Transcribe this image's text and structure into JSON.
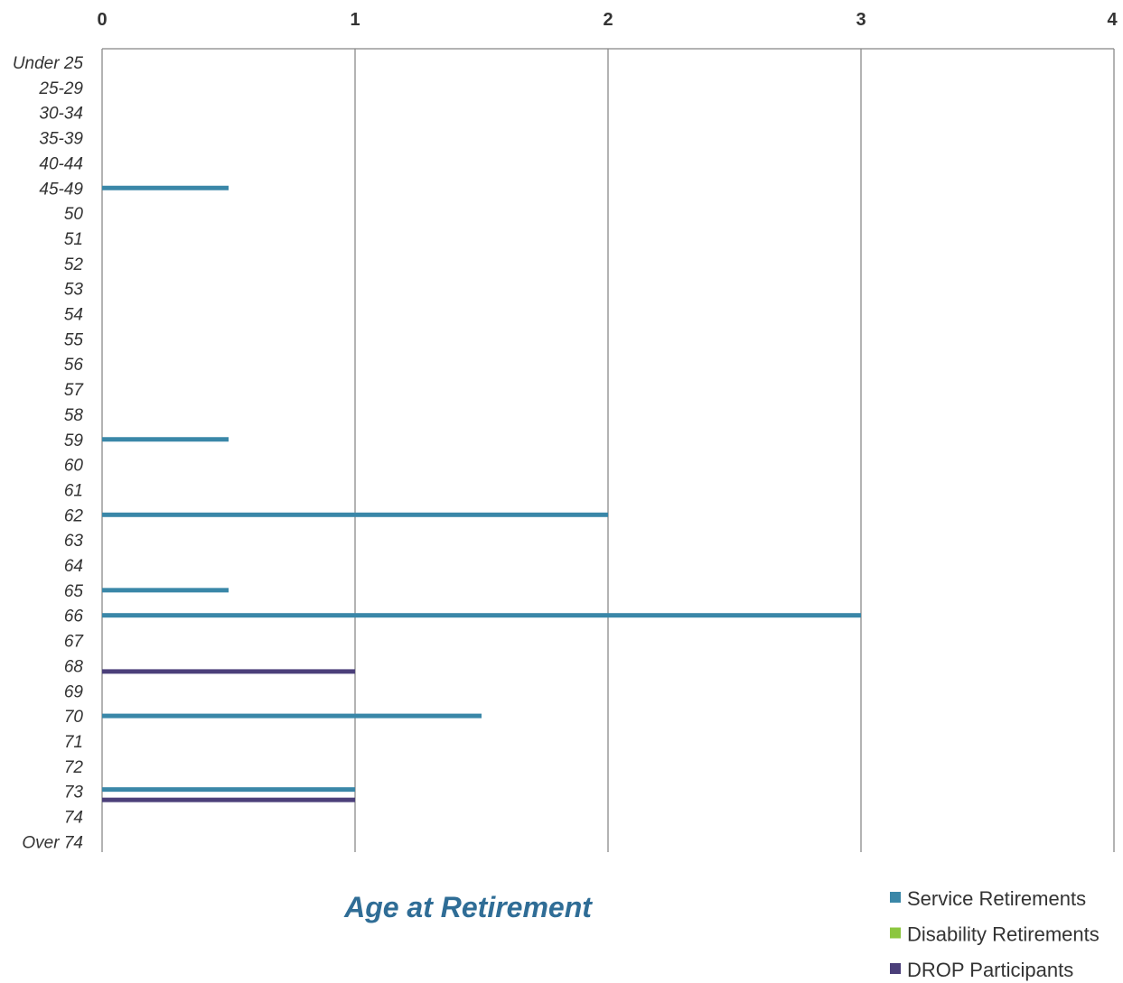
{
  "chart_data": {
    "type": "bar",
    "orientation": "horizontal",
    "title": "Age at Retirement",
    "xlim": [
      0,
      4
    ],
    "x_ticks": [
      "0",
      "1",
      "2",
      "3",
      "4"
    ],
    "categories": [
      "Under 25",
      "25-29",
      "30-34",
      "35-39",
      "40-44",
      "45-49",
      "50",
      "51",
      "52",
      "53",
      "54",
      "55",
      "56",
      "57",
      "58",
      "59",
      "60",
      "61",
      "62",
      "63",
      "64",
      "65",
      "66",
      "67",
      "68",
      "69",
      "70",
      "71",
      "72",
      "73",
      "74",
      "Over 74"
    ],
    "series": [
      {
        "name": "Service Retirements",
        "color": "#3a87a8",
        "values": [
          0,
          0,
          0,
          0,
          0,
          0.5,
          0,
          0,
          0,
          0,
          0,
          0,
          0,
          0,
          0,
          0.5,
          0,
          0,
          2,
          0,
          0,
          0.5,
          3,
          0,
          0,
          0,
          1.5,
          0,
          0,
          1,
          0,
          0
        ]
      },
      {
        "name": "Disability Retirements",
        "color": "#8cc63f",
        "values": [
          0,
          0,
          0,
          0,
          0,
          0,
          0,
          0,
          0,
          0,
          0,
          0,
          0,
          0,
          0,
          0,
          0,
          0,
          0,
          0,
          0,
          0,
          0,
          0,
          0,
          0,
          0,
          0,
          0,
          0,
          0,
          0
        ]
      },
      {
        "name": "DROP Participants",
        "color": "#4b3f7a",
        "values": [
          0,
          0,
          0,
          0,
          0,
          0,
          0,
          0,
          0,
          0,
          0,
          0,
          0,
          0,
          0,
          0,
          0,
          0,
          0,
          0,
          0,
          0,
          0,
          0,
          1,
          0,
          0,
          0,
          0,
          1,
          0,
          0
        ]
      }
    ],
    "grid": true,
    "legend_position": "bottom-right"
  }
}
